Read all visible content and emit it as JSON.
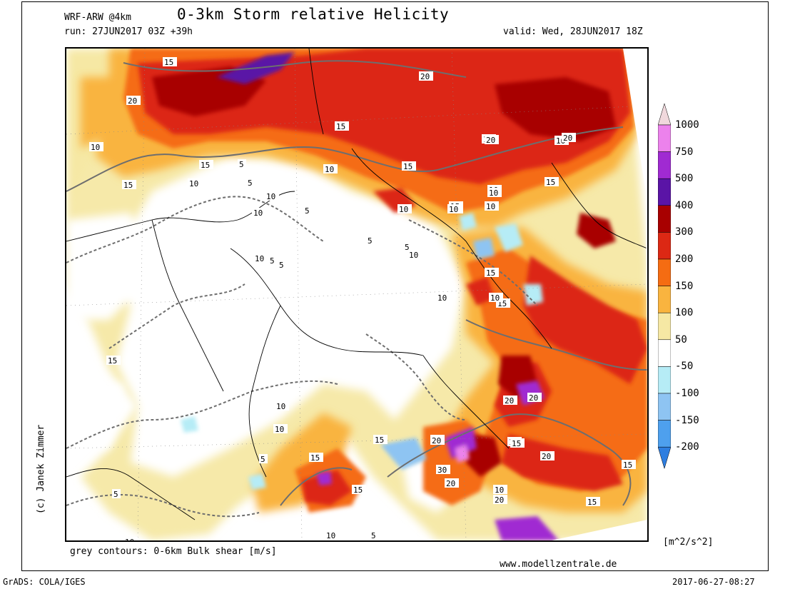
{
  "header": {
    "model": "WRF-ARW @4km",
    "title": "0-3km Storm relative Helicity",
    "run": "run: 27JUN2017 03Z +39h",
    "valid": "valid: Wed, 28JUN2017 18Z"
  },
  "legend": {
    "levels": [
      "1000",
      "750",
      "500",
      "400",
      "300",
      "200",
      "150",
      "100",
      "50",
      "-50",
      "-100",
      "-150",
      "-200"
    ],
    "colors": [
      "#f0d8dc",
      "#ec82ec",
      "#a02ad2",
      "#5a14a6",
      "#a80000",
      "#dc2814",
      "#f56c12",
      "#f9b43f",
      "#f6e8a4",
      "#ffffff",
      "#b6ecf6",
      "#8ec4f2",
      "#4ea0ee",
      "#2e7ee0"
    ],
    "unit": "[m^2/s^2]"
  },
  "notes": {
    "contours": "grey contours: 0-6km Bulk shear [m/s]",
    "website": "www.modellzentrale.de",
    "credit": "(c) Janek Zimmer",
    "software": "GrADS: COLA/IGES",
    "timestamp": "2017-06-27-08:27"
  },
  "contour_labels": [
    {
      "text": "15"
    },
    {
      "text": "20"
    },
    {
      "text": "20"
    },
    {
      "text": "10"
    },
    {
      "text": "15"
    },
    {
      "text": "15"
    },
    {
      "text": "20"
    },
    {
      "text": "20"
    },
    {
      "text": "15"
    },
    {
      "text": "10"
    },
    {
      "text": "10"
    },
    {
      "text": "15"
    },
    {
      "text": "10"
    },
    {
      "text": "15"
    },
    {
      "text": "10"
    },
    {
      "text": "15"
    },
    {
      "text": "10"
    },
    {
      "text": "10"
    },
    {
      "text": "15"
    },
    {
      "text": "15"
    },
    {
      "text": "20"
    },
    {
      "text": "20"
    },
    {
      "text": "15"
    },
    {
      "text": "20"
    },
    {
      "text": "30"
    },
    {
      "text": "20"
    },
    {
      "text": "15"
    },
    {
      "text": "20"
    },
    {
      "text": "10"
    },
    {
      "text": "20"
    },
    {
      "text": "15"
    },
    {
      "text": "15"
    },
    {
      "text": "15"
    },
    {
      "text": "20"
    },
    {
      "text": "15"
    },
    {
      "text": "15"
    },
    {
      "text": "10"
    },
    {
      "text": "10"
    },
    {
      "text": "10"
    },
    {
      "text": "5"
    },
    {
      "text": "5"
    },
    {
      "text": "5"
    },
    {
      "text": "10"
    },
    {
      "text": "10"
    },
    {
      "text": "5"
    },
    {
      "text": "10"
    },
    {
      "text": "15"
    },
    {
      "text": "5"
    },
    {
      "text": "10"
    },
    {
      "text": "5"
    },
    {
      "text": "5"
    },
    {
      "text": "10"
    },
    {
      "text": "5"
    },
    {
      "text": "15"
    },
    {
      "text": "5"
    },
    {
      "text": "10"
    },
    {
      "text": "10"
    },
    {
      "text": "5"
    },
    {
      "text": "10"
    },
    {
      "text": "15"
    },
    {
      "text": "10"
    }
  ]
}
